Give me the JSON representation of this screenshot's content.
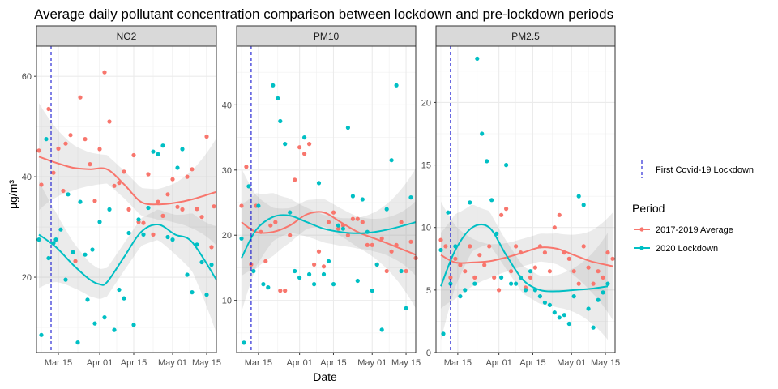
{
  "chart_data": {
    "type": "scatter",
    "title": "Average daily pollutant concentration comparison between lockdown and pre-lockdown periods",
    "xlabel": "Date",
    "ylabel": "μg/m³",
    "x_ticks": [
      "Mar 15",
      "Apr 01",
      "Apr 15",
      "May 01",
      "May 15"
    ],
    "x_range": [
      "2020-03-06",
      "2020-05-19"
    ],
    "lockdown_date": "2020-03-12",
    "legend": {
      "line_label": "First Covid-19 Lockdown",
      "title": "Period",
      "entries": [
        {
          "name": "2017-2019 Average",
          "color": "#F8766D"
        },
        {
          "name": "2020 Lockdown",
          "color": "#00BFC4"
        }
      ]
    },
    "colors": {
      "pre": "#F8766D",
      "lockdown": "#00BFC4",
      "lockdown_line": "#0000CD",
      "strip": "#D9D9D9",
      "ribbon": "#999999"
    },
    "grid": true,
    "panels": [
      {
        "name": "NO2",
        "ylim": [
          5,
          66
        ],
        "yticks": [
          "20",
          "40",
          "60"
        ],
        "series": [
          {
            "name": "2017-2019 Average",
            "x": [
              "2020-03-07",
              "2020-03-08",
              "2020-03-11",
              "2020-03-13",
              "2020-03-15",
              "2020-03-17",
              "2020-03-18",
              "2020-03-20",
              "2020-03-22",
              "2020-03-24",
              "2020-03-26",
              "2020-03-28",
              "2020-03-30",
              "2020-04-01",
              "2020-04-03",
              "2020-04-05",
              "2020-04-07",
              "2020-04-09",
              "2020-04-11",
              "2020-04-13",
              "2020-04-15",
              "2020-04-17",
              "2020-04-19",
              "2020-04-21",
              "2020-04-23",
              "2020-04-25",
              "2020-04-27",
              "2020-04-29",
              "2020-05-01",
              "2020-05-03",
              "2020-05-05",
              "2020-05-07",
              "2020-05-09",
              "2020-05-11",
              "2020-05-13",
              "2020-05-15",
              "2020-05-17",
              "2020-05-18"
            ],
            "y": [
              45.2,
              38.4,
              53.5,
              40.8,
              45.6,
              37.2,
              46.6,
              48.3,
              23.2,
              55.8,
              47.5,
              42.5,
              35.2,
              45.5,
              60.8,
              51.0,
              38.2,
              38.8,
              41.0,
              33.5,
              44.3,
              31.0,
              30.8,
              40.5,
              28.5,
              35.0,
              32.2,
              36.5,
              39.5,
              34.0,
              33.5,
              40.0,
              41.5,
              33.6,
              32.0,
              48.0,
              26.0,
              34.1
            ]
          },
          {
            "name": "2020 Lockdown",
            "x": [
              "2020-03-07",
              "2020-03-08",
              "2020-03-10",
              "2020-03-11",
              "2020-03-13",
              "2020-03-14",
              "2020-03-16",
              "2020-03-18",
              "2020-03-19",
              "2020-03-21",
              "2020-03-23",
              "2020-03-24",
              "2020-03-26",
              "2020-03-27",
              "2020-03-29",
              "2020-03-30",
              "2020-04-01",
              "2020-04-03",
              "2020-04-05",
              "2020-04-07",
              "2020-04-09",
              "2020-04-11",
              "2020-04-13",
              "2020-04-15",
              "2020-04-17",
              "2020-04-19",
              "2020-04-21",
              "2020-04-23",
              "2020-04-25",
              "2020-04-27",
              "2020-04-29",
              "2020-05-01",
              "2020-05-03",
              "2020-05-05",
              "2020-05-07",
              "2020-05-09",
              "2020-05-11",
              "2020-05-13",
              "2020-05-15",
              "2020-05-17"
            ],
            "y": [
              27.5,
              8.5,
              47.5,
              23.8,
              26.8,
              27.5,
              29.5,
              19.5,
              36.5,
              25.0,
              7.0,
              35.0,
              24.5,
              15.5,
              25.5,
              10.8,
              31.0,
              12.0,
              33.5,
              9.5,
              17.5,
              15.8,
              28.8,
              10.5,
              31.5,
              28.5,
              33.8,
              45.0,
              44.5,
              46.2,
              28.0,
              27.5,
              41.8,
              45.5,
              20.5,
              17.0,
              26.5,
              23.0,
              16.5,
              22.5
            ]
          }
        ],
        "smooth": [
          {
            "name": "2017-2019 Average",
            "x": [
              "2020-03-07",
              "2020-03-14",
              "2020-03-21",
              "2020-03-28",
              "2020-04-04",
              "2020-04-11",
              "2020-04-18",
              "2020-04-25",
              "2020-05-02",
              "2020-05-09",
              "2020-05-19"
            ],
            "y": [
              44.0,
              42.8,
              41.8,
              41.5,
              41.5,
              38.5,
              35.0,
              34.5,
              34.8,
              35.5,
              37.0
            ]
          },
          {
            "name": "2020 Lockdown",
            "x": [
              "2020-03-07",
              "2020-03-14",
              "2020-03-21",
              "2020-03-28",
              "2020-04-01",
              "2020-04-04",
              "2020-04-11",
              "2020-04-18",
              "2020-04-25",
              "2020-05-02",
              "2020-05-09",
              "2020-05-19"
            ],
            "y": [
              28.5,
              26.0,
              22.5,
              19.5,
              18.6,
              19.0,
              24.0,
              29.0,
              30.5,
              28.5,
              27.0,
              19.5
            ]
          }
        ]
      },
      {
        "name": "PM10",
        "ylim": [
          2,
          49
        ],
        "yticks": [
          "10",
          "20",
          "30",
          "40"
        ],
        "series": [
          {
            "name": "2017-2019 Average",
            "x": [
              "2020-03-08",
              "2020-03-10",
              "2020-03-12",
              "2020-03-14",
              "2020-03-16",
              "2020-03-18",
              "2020-03-20",
              "2020-03-22",
              "2020-03-24",
              "2020-03-26",
              "2020-03-28",
              "2020-03-30",
              "2020-04-01",
              "2020-04-03",
              "2020-04-05",
              "2020-04-07",
              "2020-04-09",
              "2020-04-11",
              "2020-04-13",
              "2020-04-15",
              "2020-04-17",
              "2020-04-19",
              "2020-04-21",
              "2020-04-23",
              "2020-04-25",
              "2020-04-27",
              "2020-04-29",
              "2020-05-01",
              "2020-05-03",
              "2020-05-05",
              "2020-05-07",
              "2020-05-09",
              "2020-05-11",
              "2020-05-13",
              "2020-05-15",
              "2020-05-17",
              "2020-05-19"
            ],
            "y": [
              24.5,
              30.5,
              15.5,
              24.5,
              20.5,
              16.0,
              21.5,
              22.0,
              11.5,
              11.5,
              20.0,
              28.5,
              33.5,
              32.5,
              34.0,
              15.5,
              17.5,
              15.2,
              22.0,
              23.5,
              21.0,
              21.5,
              20.0,
              22.5,
              22.5,
              22.0,
              18.5,
              18.5,
              15.5,
              19.5,
              14.5,
              17.5,
              18.5,
              22.0,
              14.5,
              19.0,
              16.5
            ]
          },
          {
            "name": "2020 Lockdown",
            "x": [
              "2020-03-08",
              "2020-03-09",
              "2020-03-11",
              "2020-03-13",
              "2020-03-15",
              "2020-03-17",
              "2020-03-19",
              "2020-03-21",
              "2020-03-23",
              "2020-03-24",
              "2020-03-26",
              "2020-03-28",
              "2020-03-30",
              "2020-04-01",
              "2020-04-03",
              "2020-04-05",
              "2020-04-07",
              "2020-04-09",
              "2020-04-11",
              "2020-04-13",
              "2020-04-15",
              "2020-04-17",
              "2020-04-19",
              "2020-04-21",
              "2020-04-23",
              "2020-04-25",
              "2020-04-27",
              "2020-04-29",
              "2020-05-01",
              "2020-05-03",
              "2020-05-05",
              "2020-05-07",
              "2020-05-09",
              "2020-05-11",
              "2020-05-13",
              "2020-05-15",
              "2020-05-17"
            ],
            "y": [
              19.5,
              3.5,
              27.5,
              14.5,
              24.5,
              12.5,
              12.0,
              43.0,
              41.0,
              37.5,
              34.0,
              23.5,
              14.5,
              13.5,
              35.0,
              14.0,
              12.5,
              28.0,
              14.0,
              16.0,
              12.5,
              21.5,
              21.0,
              36.5,
              26.0,
              13.0,
              25.5,
              20.5,
              11.5,
              15.5,
              5.5,
              24.0,
              31.5,
              43.0,
              14.5,
              8.8,
              25.8
            ]
          }
        ],
        "smooth": [
          {
            "name": "2017-2019 Average",
            "x": [
              "2020-03-08",
              "2020-03-14",
              "2020-03-21",
              "2020-03-28",
              "2020-04-04",
              "2020-04-11",
              "2020-04-18",
              "2020-04-25",
              "2020-05-02",
              "2020-05-09",
              "2020-05-19"
            ],
            "y": [
              22.0,
              20.5,
              20.5,
              21.5,
              23.2,
              23.5,
              22.0,
              20.5,
              19.5,
              18.5,
              17.0
            ]
          },
          {
            "name": "2020 Lockdown",
            "x": [
              "2020-03-08",
              "2020-03-14",
              "2020-03-21",
              "2020-03-28",
              "2020-04-04",
              "2020-04-11",
              "2020-04-18",
              "2020-04-25",
              "2020-05-02",
              "2020-05-09",
              "2020-05-19"
            ],
            "y": [
              16.5,
              20.8,
              22.8,
              23.0,
              22.0,
              21.0,
              20.5,
              20.3,
              20.5,
              21.0,
              22.0
            ]
          }
        ]
      },
      {
        "name": "PM2.5",
        "ylim": [
          0,
          24.5
        ],
        "yticks": [
          "0",
          "5",
          "10",
          "15",
          "20"
        ],
        "series": [
          {
            "name": "2017-2019 Average",
            "x": [
              "2020-03-08",
              "2020-03-10",
              "2020-03-12",
              "2020-03-14",
              "2020-03-16",
              "2020-03-18",
              "2020-03-20",
              "2020-03-22",
              "2020-03-24",
              "2020-03-26",
              "2020-03-28",
              "2020-03-30",
              "2020-04-01",
              "2020-04-02",
              "2020-04-04",
              "2020-04-06",
              "2020-04-08",
              "2020-04-10",
              "2020-04-12",
              "2020-04-14",
              "2020-04-16",
              "2020-04-18",
              "2020-04-20",
              "2020-04-22",
              "2020-04-24",
              "2020-04-26",
              "2020-04-28",
              "2020-04-30",
              "2020-05-02",
              "2020-05-04",
              "2020-05-06",
              "2020-05-08",
              "2020-05-10",
              "2020-05-12",
              "2020-05-14",
              "2020-05-16",
              "2020-05-18"
            ],
            "y": [
              9.0,
              8.5,
              6.0,
              7.5,
              7.0,
              6.5,
              8.5,
              6.0,
              7.8,
              7.0,
              8.5,
              6.0,
              5.0,
              11.0,
              11.5,
              6.5,
              8.5,
              8.0,
              5.2,
              6.0,
              6.8,
              8.5,
              8.0,
              6.5,
              10.0,
              11.0,
              8.0,
              7.5,
              6.5,
              5.5,
              8.5,
              6.8,
              5.5,
              6.5,
              6.0,
              8.0,
              7.5
            ]
          },
          {
            "name": "2020 Lockdown",
            "x": [
              "2020-03-08",
              "2020-03-09",
              "2020-03-11",
              "2020-03-12",
              "2020-03-14",
              "2020-03-16",
              "2020-03-18",
              "2020-03-20",
              "2020-03-22",
              "2020-03-23",
              "2020-03-25",
              "2020-03-27",
              "2020-03-29",
              "2020-03-31",
              "2020-04-02",
              "2020-04-04",
              "2020-04-06",
              "2020-04-08",
              "2020-04-10",
              "2020-04-12",
              "2020-04-14",
              "2020-04-16",
              "2020-04-18",
              "2020-04-20",
              "2020-04-22",
              "2020-04-24",
              "2020-04-26",
              "2020-04-28",
              "2020-04-30",
              "2020-05-02",
              "2020-05-04",
              "2020-05-06",
              "2020-05-08",
              "2020-05-10",
              "2020-05-12",
              "2020-05-14",
              "2020-05-16"
            ],
            "y": [
              8.2,
              1.5,
              11.2,
              5.5,
              8.5,
              4.5,
              5.0,
              12.0,
              5.5,
              23.5,
              17.5,
              15.3,
              12.2,
              9.5,
              6.0,
              15.0,
              5.5,
              5.5,
              6.0,
              5.0,
              6.5,
              5.0,
              4.5,
              4.0,
              3.8,
              3.2,
              2.8,
              3.0,
              2.3,
              4.5,
              12.5,
              11.8,
              3.5,
              2.0,
              4.2,
              4.8,
              5.5
            ]
          }
        ],
        "smooth": [
          {
            "name": "2017-2019 Average",
            "x": [
              "2020-03-08",
              "2020-03-14",
              "2020-03-21",
              "2020-03-28",
              "2020-04-04",
              "2020-04-11",
              "2020-04-18",
              "2020-04-25",
              "2020-05-02",
              "2020-05-09",
              "2020-05-18"
            ],
            "y": [
              7.8,
              7.2,
              7.2,
              7.3,
              7.6,
              8.0,
              8.4,
              8.3,
              7.8,
              7.3,
              6.9
            ]
          },
          {
            "name": "2020 Lockdown",
            "x": [
              "2020-03-08",
              "2020-03-14",
              "2020-03-21",
              "2020-03-28",
              "2020-04-04",
              "2020-04-11",
              "2020-04-18",
              "2020-04-25",
              "2020-05-02",
              "2020-05-09",
              "2020-05-16"
            ],
            "y": [
              5.3,
              8.2,
              10.0,
              10.0,
              7.8,
              5.8,
              5.0,
              4.9,
              5.0,
              5.1,
              5.3
            ]
          }
        ]
      }
    ]
  }
}
